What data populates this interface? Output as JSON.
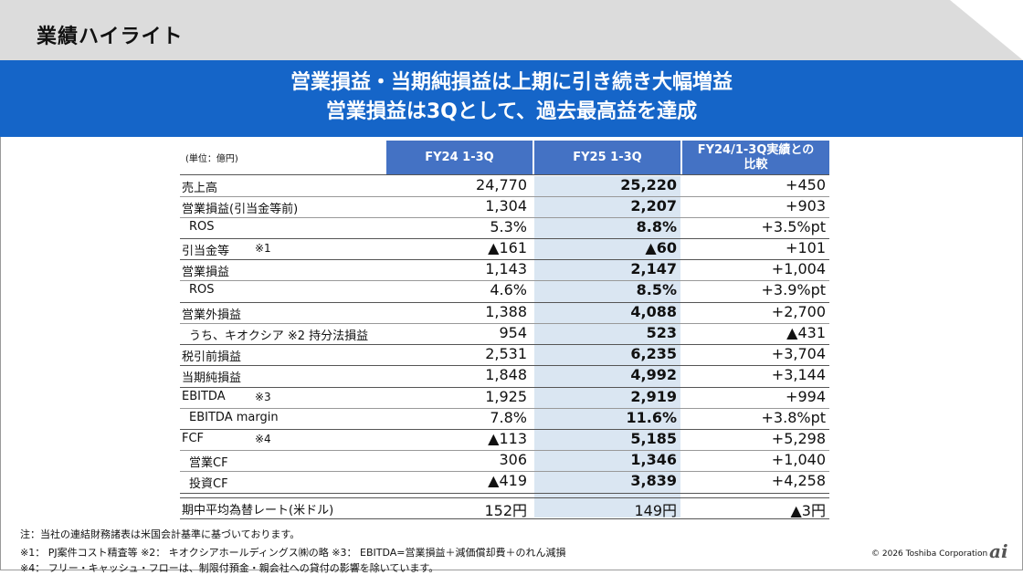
{
  "page_title": "業績ハイライト",
  "banner": {
    "line1": "営業損益・当期純損益は上期に引き続き大幅増益",
    "line2": "営業損益は3Qとして、過去最高益を達成"
  },
  "table": {
    "unit_label": "(単位：億円)",
    "headers": [
      "FY24 1-3Q",
      "FY25 1-3Q",
      "FY24/1-3Q実績との",
      "比較"
    ],
    "rows": [
      {
        "label": "売上高",
        "note": "",
        "fy24": "24,770",
        "fy25": "25,220",
        "diff": "+450"
      },
      {
        "label": "営業損益(引当金等前)",
        "note": "",
        "fy24": "1,304",
        "fy25": "2,207",
        "diff": "+903"
      },
      {
        "label": "ROS",
        "note": "",
        "fy24": "5.3%",
        "fy25": "8.8%",
        "diff": "+3.5%pt"
      },
      {
        "label": "引当金等",
        "note": "※1",
        "fy24": "▲161",
        "fy25": "▲60",
        "diff": "+101"
      },
      {
        "label": "営業損益",
        "note": "",
        "fy24": "1,143",
        "fy25": "2,147",
        "diff": "+1,004"
      },
      {
        "label": "ROS",
        "note": "",
        "fy24": "4.6%",
        "fy25": "8.5%",
        "diff": "+3.9%pt"
      },
      {
        "label": "営業外損益",
        "note": "",
        "fy24": "1,388",
        "fy25": "4,088",
        "diff": "+2,700"
      },
      {
        "label": "うち、キオクシア ※2 持分法損益",
        "note": "",
        "fy24": "954",
        "fy25": "523",
        "diff": "▲431"
      },
      {
        "label": "税引前損益",
        "note": "",
        "fy24": "2,531",
        "fy25": "6,235",
        "diff": "+3,704"
      },
      {
        "label": "当期純損益",
        "note": "",
        "fy24": "1,848",
        "fy25": "4,992",
        "diff": "+3,144"
      },
      {
        "label": "EBITDA",
        "note": "※3",
        "fy24": "1,925",
        "fy25": "2,919",
        "diff": "+994"
      },
      {
        "label": "EBITDA margin",
        "note": "",
        "fy24": "7.8%",
        "fy25": "11.6%",
        "diff": "+3.8%pt"
      },
      {
        "label": "FCF",
        "note": "※4",
        "fy24": "▲113",
        "fy25": "5,185",
        "diff": "+5,298"
      },
      {
        "label": "営業CF",
        "note": "",
        "fy24": "306",
        "fy25": "1,346",
        "diff": "+1,040"
      },
      {
        "label": "投資CF",
        "note": "",
        "fy24": "▲419",
        "fy25": "3,839",
        "diff": "+4,258"
      },
      {
        "label": "期中平均為替レート(米ドル)",
        "note": "",
        "fy24": "152円",
        "fy25": "149円",
        "diff": "▲3円"
      }
    ]
  },
  "footnotes": [
    "注：当社の連結財務諸表は米国会計基準に基づいております。",
    "※1： PJ案件コスト精査等 ※2： キオクシアホールディングス㈱の略 ※3： EBITDA=営業損益＋減価償却費＋のれん減損",
    "※4： フリー・キャッシュ・フローは、制限付預金・親会社への貸付の影響を除いています。"
  ],
  "copyright": "© 2026 Toshiba Corporation",
  "logo_text": "ai"
}
